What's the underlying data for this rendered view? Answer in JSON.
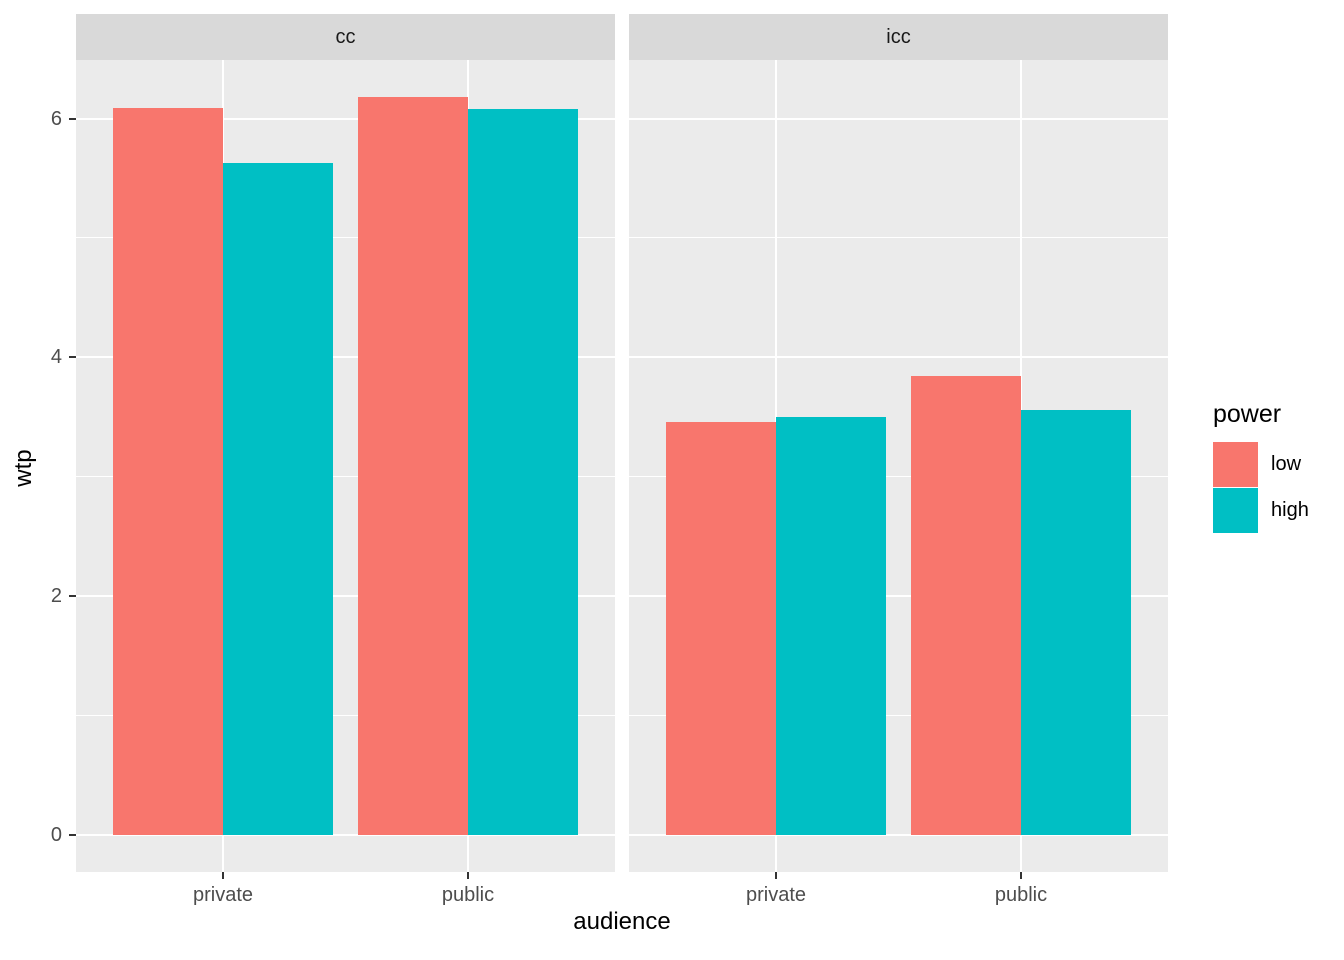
{
  "chart_data": {
    "type": "bar",
    "title": "",
    "xlabel": "audience",
    "ylabel": "wtp",
    "categories": [
      "private",
      "public"
    ],
    "facets": [
      {
        "label": "cc",
        "series": [
          {
            "name": "low",
            "values": [
              6.09,
              6.18
            ]
          },
          {
            "name": "high",
            "values": [
              5.63,
              6.08
            ]
          }
        ]
      },
      {
        "label": "icc",
        "series": [
          {
            "name": "low",
            "values": [
              3.46,
              3.84
            ]
          },
          {
            "name": "high",
            "values": [
              3.5,
              3.56
            ]
          }
        ]
      }
    ],
    "series_colors": {
      "low": "#F8766D",
      "high": "#00BFC4"
    },
    "ylim": [
      -0.31,
      6.49
    ],
    "yticks": [
      0,
      2,
      4,
      6
    ],
    "yminor": [
      1,
      3,
      5
    ],
    "grid": "on",
    "legend_position": "right"
  },
  "legend": {
    "title": "power",
    "entries": [
      {
        "label": "low",
        "color": "#F8766D"
      },
      {
        "label": "high",
        "color": "#00BFC4"
      }
    ]
  },
  "colors": {
    "bar_low": "#F8766D",
    "bar_high": "#00BFC4",
    "panel_bg": "#EBEBEB",
    "strip_bg": "#D9D9D9",
    "grid": "#FFFFFF",
    "tick": "#333333",
    "tick_label": "#4D4D4D",
    "text": "#000000"
  }
}
